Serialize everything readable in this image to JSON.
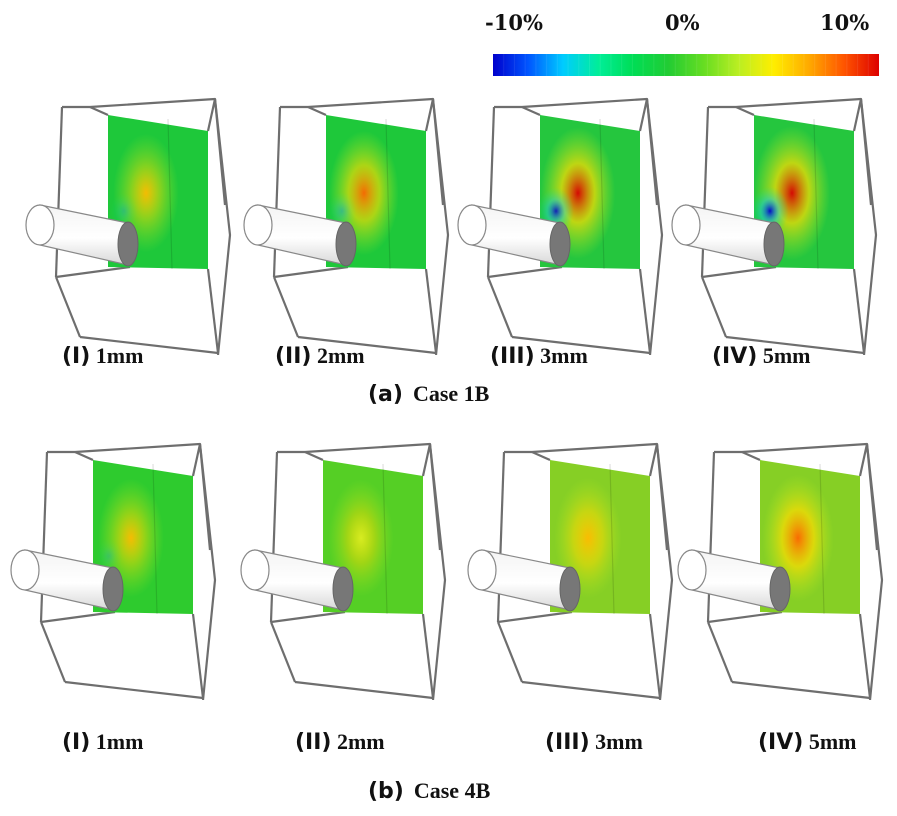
{
  "colorbar": {
    "labels": [
      "-10%",
      "0%",
      "10%"
    ],
    "stops": [
      "#0000cc",
      "#0055ff",
      "#00ccff",
      "#00ee99",
      "#00dd55",
      "#22cc33",
      "#66dd22",
      "#bbee22",
      "#ffee00",
      "#ffaa00",
      "#ff5500",
      "#dd0000"
    ]
  },
  "groups": [
    {
      "label": "(a)",
      "name": "Case 1B",
      "panels": [
        {
          "numeral": "(I)",
          "value": "1mm",
          "base": "#1ec83a",
          "hot": 0.35,
          "cold": 0.2
        },
        {
          "numeral": "(II)",
          "value": "2mm",
          "base": "#1ec83a",
          "hot": 0.6,
          "cold": 0.3
        },
        {
          "numeral": "(III)",
          "value": "3mm",
          "base": "#25c63e",
          "hot": 0.9,
          "cold": 0.75
        },
        {
          "numeral": "(IV)",
          "value": "5mm",
          "base": "#25c63e",
          "hot": 1.0,
          "cold": 0.85
        }
      ]
    },
    {
      "label": "(b)",
      "name": "Case 4B",
      "panels": [
        {
          "numeral": "(I)",
          "value": "1mm",
          "base": "#2ecb2e",
          "hot": 0.35,
          "cold": 0.15
        },
        {
          "numeral": "(II)",
          "value": "2mm",
          "base": "#55cf25",
          "hot": 0.3,
          "cold": 0.0
        },
        {
          "numeral": "(III)",
          "value": "3mm",
          "base": "#86cf25",
          "hot": 0.45,
          "cold": 0.0
        },
        {
          "numeral": "(IV)",
          "value": "5mm",
          "base": "#86cf25",
          "hot": 0.7,
          "cold": 0.0
        }
      ]
    }
  ]
}
